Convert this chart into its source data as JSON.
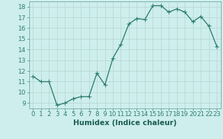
{
  "x": [
    0,
    1,
    2,
    3,
    4,
    5,
    6,
    7,
    8,
    9,
    10,
    11,
    12,
    13,
    14,
    15,
    16,
    17,
    18,
    19,
    20,
    21,
    22,
    23
  ],
  "y": [
    11.5,
    11.0,
    11.0,
    8.8,
    9.0,
    9.4,
    9.6,
    9.6,
    11.8,
    10.7,
    13.2,
    14.5,
    16.4,
    16.9,
    16.8,
    18.1,
    18.1,
    17.5,
    17.8,
    17.5,
    16.6,
    17.1,
    16.2,
    14.3
  ],
  "xlabel": "Humidex (Indice chaleur)",
  "xlim": [
    -0.5,
    23.5
  ],
  "ylim": [
    8.5,
    18.5
  ],
  "yticks": [
    9,
    10,
    11,
    12,
    13,
    14,
    15,
    16,
    17,
    18
  ],
  "xticks": [
    0,
    1,
    2,
    3,
    4,
    5,
    6,
    7,
    8,
    9,
    10,
    11,
    12,
    13,
    14,
    15,
    16,
    17,
    18,
    19,
    20,
    21,
    22,
    23
  ],
  "line_color": "#2e7d6e",
  "marker_color": "#2e7d6e",
  "bg_color": "#cdeeed",
  "grid_color": "#b8d8d5",
  "xlabel_fontsize": 7.5,
  "tick_fontsize": 6.5,
  "line_width": 1.0,
  "marker_size": 2.5
}
